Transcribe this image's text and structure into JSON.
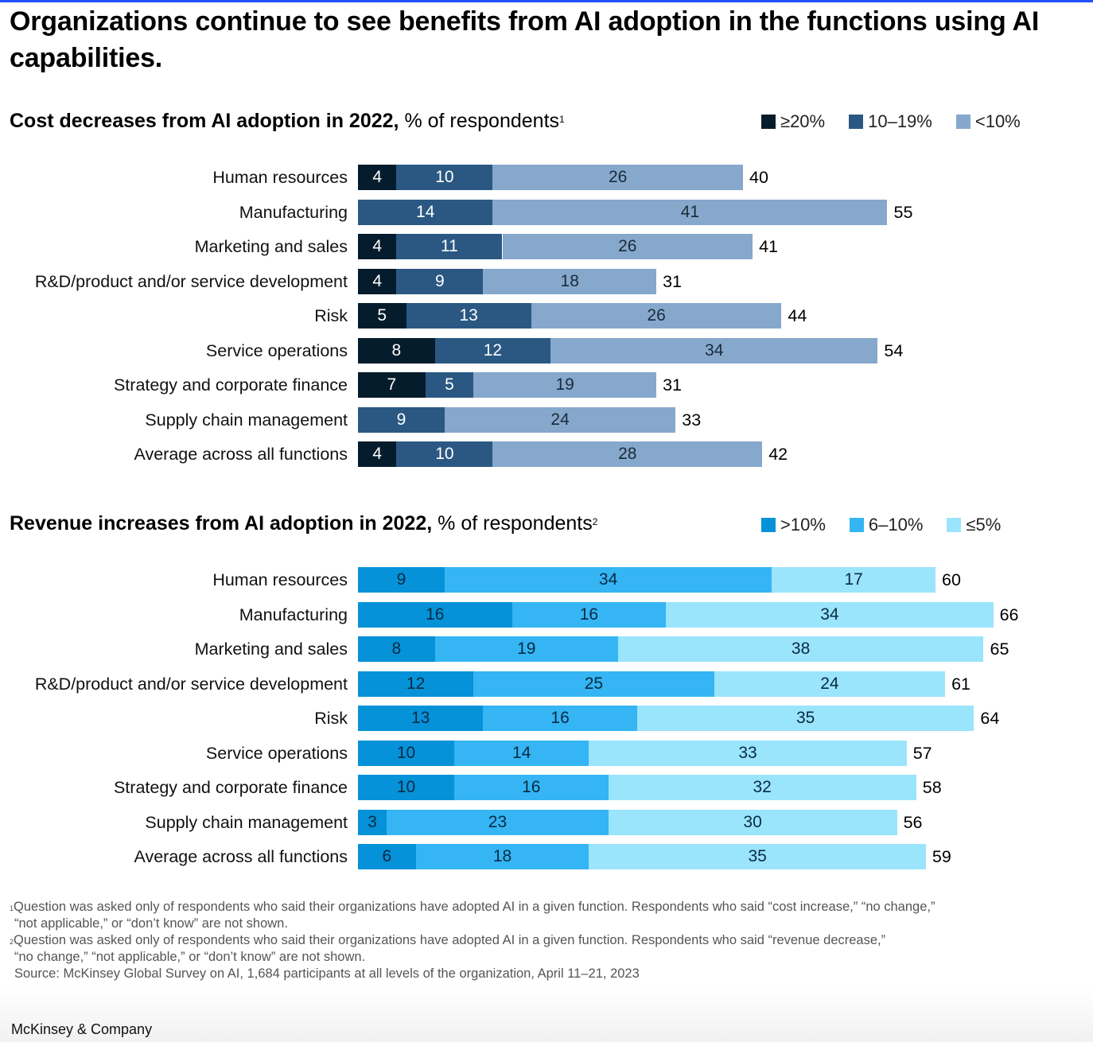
{
  "headline": "Organizations continue to see benefits from AI adoption in the functions using AI capabilities.",
  "brand": "McKinsey & Company",
  "chart_data": [
    {
      "type": "bar",
      "orientation": "horizontal",
      "stacked": true,
      "title": "Cost decreases from AI adoption in 2022,",
      "subtitle": "% of respondents",
      "title_footnote": "1",
      "categories": [
        "Human resources",
        "Manufacturing",
        "Marketing and sales",
        "R&D/product and/or service development",
        "Risk",
        "Service operations",
        "Strategy and corporate finance",
        "Supply chain management",
        "Average across all functions"
      ],
      "series": [
        {
          "name": "≥20%",
          "color": "#051c2c",
          "text_color": "#ffffff",
          "values": [
            4,
            0,
            4,
            4,
            5,
            8,
            7,
            0,
            4
          ]
        },
        {
          "name": "10–19%",
          "color": "#2b5883",
          "text_color": "#ffffff",
          "values": [
            10,
            14,
            11,
            9,
            13,
            12,
            5,
            9,
            10
          ]
        },
        {
          "name": "<10%",
          "color": "#86a8cc",
          "text_color": "#1a2a3a",
          "values": [
            26,
            41,
            26,
            18,
            26,
            34,
            19,
            24,
            28
          ]
        }
      ],
      "totals": [
        40,
        55,
        41,
        31,
        44,
        54,
        31,
        33,
        42
      ],
      "legend_position": "top-right",
      "grid": false
    },
    {
      "type": "bar",
      "orientation": "horizontal",
      "stacked": true,
      "title": "Revenue increases from AI adoption in 2022,",
      "subtitle": "% of respondents",
      "title_footnote": "2",
      "categories": [
        "Human resources",
        "Manufacturing",
        "Marketing and sales",
        "R&D/product and/or service development",
        "Risk",
        "Service operations",
        "Strategy and corporate finance",
        "Supply chain management",
        "Average across all functions"
      ],
      "series": [
        {
          "name": ">10%",
          "color": "#0592d8",
          "text_color": "#082a44",
          "values": [
            9,
            16,
            8,
            12,
            13,
            10,
            10,
            3,
            6
          ]
        },
        {
          "name": "6–10%",
          "color": "#35b5f3",
          "text_color": "#082a44",
          "values": [
            34,
            16,
            19,
            25,
            16,
            14,
            16,
            23,
            18
          ]
        },
        {
          "name": "≤5%",
          "color": "#9ae4fc",
          "text_color": "#082a44",
          "values": [
            17,
            34,
            38,
            24,
            35,
            33,
            32,
            30,
            35
          ]
        }
      ],
      "totals": [
        60,
        66,
        65,
        61,
        64,
        57,
        58,
        56,
        59
      ],
      "legend_position": "top-right",
      "grid": false
    }
  ],
  "footnotes": [
    {
      "marker": "1",
      "lines": [
        "Question was asked only of respondents who said their organizations have adopted AI in a given function. Respondents who said “cost increase,” “no change,”",
        "“not applicable,” or “don’t know” are not shown."
      ]
    },
    {
      "marker": "2",
      "lines": [
        "Question was asked only of respondents who said their organizations have adopted AI in a given function. Respondents who said “revenue decrease,”",
        "“no change,” “not applicable,” or “don’t know” are not shown."
      ]
    }
  ],
  "source": "Source: McKinsey Global Survey on AI, 1,684 participants at all levels of the organization, April 11–21, 2023"
}
